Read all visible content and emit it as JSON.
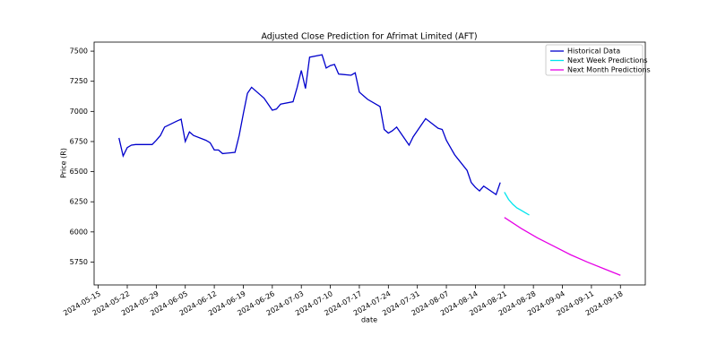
{
  "chart_data": {
    "type": "line",
    "title": "Adjusted Close Prediction for Afrimat Limited (AFT)",
    "xlabel": "date",
    "ylabel": "Price (R)",
    "xlim": [
      "2024-05-14",
      "2024-09-24"
    ],
    "ylim": [
      5560,
      7575
    ],
    "yticks": [
      5750,
      6000,
      6250,
      6500,
      6750,
      7000,
      7250,
      7500
    ],
    "xticks": [
      "2024-05-15",
      "2024-05-22",
      "2024-05-29",
      "2024-06-05",
      "2024-06-12",
      "2024-06-19",
      "2024-06-26",
      "2024-07-03",
      "2024-07-10",
      "2024-07-17",
      "2024-07-24",
      "2024-07-31",
      "2024-08-07",
      "2024-08-14",
      "2024-08-21",
      "2024-08-28",
      "2024-09-04",
      "2024-09-11",
      "2024-09-18"
    ],
    "legend": "upper right",
    "series": [
      {
        "name": "Historical Data",
        "color": "#0000cc",
        "x": [
          "2024-05-20",
          "2024-05-21",
          "2024-05-22",
          "2024-05-23",
          "2024-05-24",
          "2024-05-27",
          "2024-05-28",
          "2024-05-29",
          "2024-05-30",
          "2024-05-31",
          "2024-06-03",
          "2024-06-04",
          "2024-06-05",
          "2024-06-06",
          "2024-06-07",
          "2024-06-10",
          "2024-06-11",
          "2024-06-12",
          "2024-06-13",
          "2024-06-14",
          "2024-06-17",
          "2024-06-18",
          "2024-06-19",
          "2024-06-20",
          "2024-06-21",
          "2024-06-24",
          "2024-06-25",
          "2024-06-26",
          "2024-06-27",
          "2024-06-28",
          "2024-07-01",
          "2024-07-02",
          "2024-07-03",
          "2024-07-04",
          "2024-07-05",
          "2024-07-08",
          "2024-07-09",
          "2024-07-10",
          "2024-07-11",
          "2024-07-12",
          "2024-07-15",
          "2024-07-16",
          "2024-07-17",
          "2024-07-18",
          "2024-07-19",
          "2024-07-22",
          "2024-07-23",
          "2024-07-24",
          "2024-07-25",
          "2024-07-26",
          "2024-07-29",
          "2024-07-30",
          "2024-07-31",
          "2024-08-01",
          "2024-08-02",
          "2024-08-05",
          "2024-08-06",
          "2024-08-07",
          "2024-08-08",
          "2024-08-09",
          "2024-08-12",
          "2024-08-13",
          "2024-08-14",
          "2024-08-15",
          "2024-08-16",
          "2024-08-19",
          "2024-08-20"
        ],
        "values": [
          6780,
          6630,
          6700,
          6720,
          6725,
          6725,
          6725,
          6760,
          6800,
          6870,
          6920,
          6935,
          6750,
          6830,
          6800,
          6760,
          6740,
          6680,
          6680,
          6650,
          6660,
          6800,
          6980,
          7150,
          7200,
          7110,
          7060,
          7010,
          7020,
          7060,
          7080,
          7200,
          7340,
          7190,
          7450,
          7470,
          7360,
          7380,
          7390,
          7310,
          7300,
          7320,
          7160,
          7130,
          7100,
          7040,
          6850,
          6820,
          6840,
          6870,
          6720,
          6790,
          6840,
          6890,
          6940,
          6860,
          6850,
          6760,
          6700,
          6640,
          6510,
          6410,
          6370,
          6340,
          6380,
          6310,
          6410
        ]
      },
      {
        "name": "Next Week Predictions",
        "color": "#00e5ee",
        "x": [
          "2024-08-21",
          "2024-08-22",
          "2024-08-23",
          "2024-08-24",
          "2024-08-25",
          "2024-08-26",
          "2024-08-27"
        ],
        "values": [
          6330,
          6270,
          6230,
          6200,
          6180,
          6160,
          6140
        ]
      },
      {
        "name": "Next Month Predictions",
        "color": "#e600e6",
        "x": [
          "2024-08-21",
          "2024-08-25",
          "2024-08-29",
          "2024-09-02",
          "2024-09-06",
          "2024-09-10",
          "2024-09-14",
          "2024-09-18"
        ],
        "values": [
          6120,
          6030,
          5950,
          5880,
          5810,
          5750,
          5695,
          5640
        ]
      }
    ]
  }
}
